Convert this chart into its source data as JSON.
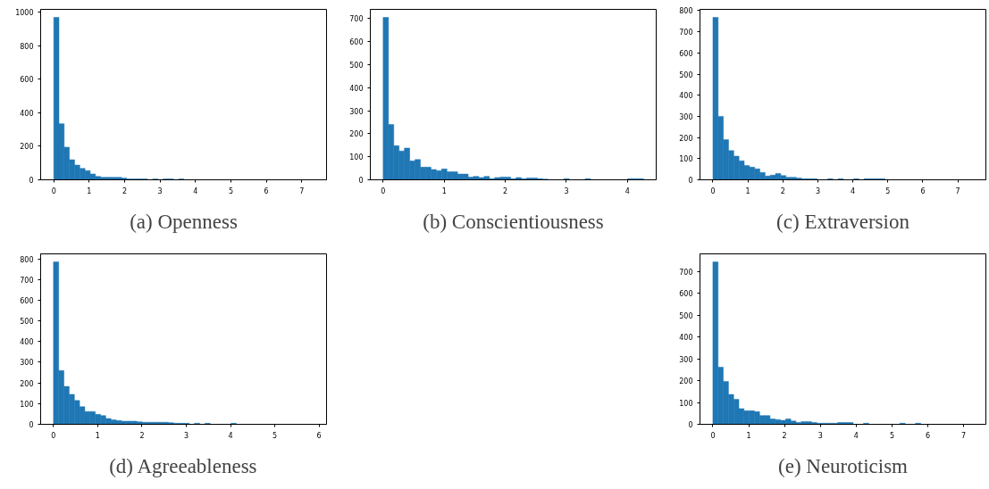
{
  "chart_data": [
    {
      "type": "histogram",
      "title": "(a) Openness",
      "color": "#1f77b4",
      "grid": false,
      "xlim": [
        -0.37,
        7.7
      ],
      "xticks": [
        0,
        1,
        2,
        3,
        4,
        5,
        6,
        7
      ],
      "ylim": [
        0,
        1018
      ],
      "yticks": [
        0,
        200,
        400,
        600,
        800,
        1000
      ],
      "bins": [
        0,
        0.147,
        0.294,
        0.441,
        0.588,
        0.735,
        0.882,
        1.029,
        1.176,
        1.323,
        1.47,
        1.617,
        1.764,
        1.911,
        2.058,
        2.205,
        2.352,
        2.499,
        2.646,
        2.793,
        2.94,
        3.087,
        3.234,
        3.381,
        3.528,
        3.675
      ],
      "values": [
        970,
        335,
        195,
        120,
        88,
        68,
        55,
        35,
        20,
        15,
        15,
        15,
        15,
        10,
        5,
        5,
        5,
        5,
        0,
        5,
        0,
        5,
        5,
        0,
        5
      ]
    },
    {
      "type": "histogram",
      "title": "(b) Conscientiousness",
      "color": "#1f77b4",
      "grid": false,
      "xlim": [
        -0.21,
        4.47
      ],
      "xticks": [
        0,
        1,
        2,
        3,
        4
      ],
      "ylim": [
        0,
        740
      ],
      "yticks": [
        0,
        100,
        200,
        300,
        400,
        500,
        600,
        700
      ],
      "bins": [
        0,
        0.087,
        0.174,
        0.261,
        0.348,
        0.435,
        0.522,
        0.609,
        0.696,
        0.783,
        0.87,
        0.957,
        1.044,
        1.131,
        1.218,
        1.305,
        1.392,
        1.479,
        1.566,
        1.653,
        1.74,
        1.827,
        1.914,
        2.001,
        2.088,
        2.175,
        2.262,
        2.349,
        2.436,
        2.523,
        2.61,
        2.697,
        2.784,
        2.871,
        2.958,
        3.045,
        3.132,
        3.219,
        3.306,
        3.393,
        3.48,
        3.567,
        3.654,
        3.741,
        3.828,
        3.915,
        4.002,
        4.089,
        4.176,
        4.263
      ],
      "values": [
        705,
        240,
        148,
        125,
        138,
        82,
        88,
        55,
        55,
        45,
        40,
        47,
        35,
        35,
        25,
        25,
        12,
        15,
        10,
        15,
        5,
        10,
        12,
        12,
        5,
        10,
        5,
        8,
        8,
        5,
        3,
        0,
        0,
        0,
        5,
        0,
        0,
        0,
        5,
        0,
        0,
        0,
        0,
        0,
        0,
        0,
        5,
        5,
        5
      ]
    },
    {
      "type": "histogram",
      "title": "(c) Extraversion",
      "color": "#1f77b4",
      "grid": false,
      "xlim": [
        -0.37,
        7.8
      ],
      "xticks": [
        0,
        1,
        2,
        3,
        4,
        5,
        6,
        7
      ],
      "ylim": [
        0,
        806
      ],
      "yticks": [
        0,
        100,
        200,
        300,
        400,
        500,
        600,
        700,
        800
      ],
      "bins": [
        0,
        0.149,
        0.298,
        0.447,
        0.596,
        0.745,
        0.894,
        1.043,
        1.192,
        1.341,
        1.49,
        1.639,
        1.788,
        1.937,
        2.086,
        2.235,
        2.384,
        2.533,
        2.682,
        2.831,
        2.98,
        3.129,
        3.278,
        3.427,
        3.576,
        3.725,
        3.874,
        4.023,
        4.172,
        4.321,
        4.47,
        4.619,
        4.768,
        4.917
      ],
      "values": [
        768,
        300,
        190,
        138,
        112,
        90,
        68,
        60,
        52,
        35,
        18,
        22,
        30,
        20,
        12,
        12,
        8,
        5,
        5,
        5,
        0,
        0,
        5,
        0,
        5,
        0,
        0,
        5,
        0,
        5,
        5,
        5,
        5
      ]
    },
    {
      "type": "histogram",
      "title": "(d) Agreeableness",
      "color": "#1f77b4",
      "grid": false,
      "xlim": [
        -0.29,
        6.17
      ],
      "xticks": [
        0,
        1,
        2,
        3,
        4,
        5,
        6
      ],
      "ylim": [
        0,
        824
      ],
      "yticks": [
        0,
        100,
        200,
        300,
        400,
        500,
        600,
        700,
        800
      ],
      "bins": [
        0,
        0.118,
        0.236,
        0.354,
        0.472,
        0.59,
        0.708,
        0.826,
        0.944,
        1.062,
        1.18,
        1.298,
        1.416,
        1.534,
        1.652,
        1.77,
        1.888,
        2.006,
        2.124,
        2.242,
        2.36,
        2.478,
        2.596,
        2.714,
        2.832,
        2.95,
        3.068,
        3.186,
        3.304,
        3.422,
        3.54,
        3.658,
        3.776,
        3.894,
        4.012,
        4.13
      ],
      "values": [
        785,
        260,
        183,
        145,
        115,
        85,
        62,
        62,
        48,
        42,
        28,
        22,
        18,
        15,
        15,
        15,
        12,
        10,
        10,
        10,
        10,
        10,
        8,
        5,
        5,
        5,
        0,
        5,
        0,
        5,
        0,
        0,
        0,
        0,
        5
      ]
    },
    {
      "type": "histogram",
      "title": "(e) Neuroticism",
      "color": "#1f77b4",
      "grid": false,
      "xlim": [
        -0.36,
        7.62
      ],
      "xticks": [
        0,
        1,
        2,
        3,
        4,
        5,
        6,
        7
      ],
      "ylim": [
        0,
        782
      ],
      "yticks": [
        0,
        100,
        200,
        300,
        400,
        500,
        600,
        700
      ],
      "bins": [
        0,
        0.145,
        0.29,
        0.435,
        0.58,
        0.725,
        0.87,
        1.015,
        1.16,
        1.305,
        1.45,
        1.595,
        1.74,
        1.885,
        2.03,
        2.175,
        2.32,
        2.465,
        2.61,
        2.755,
        2.9,
        3.045,
        3.19,
        3.335,
        3.48,
        3.625,
        3.77,
        3.915,
        4.06,
        4.205,
        4.35,
        4.495,
        4.64,
        4.785,
        4.93,
        5.075,
        5.22,
        5.365,
        5.51,
        5.655,
        5.8
      ],
      "values": [
        745,
        262,
        197,
        137,
        115,
        72,
        62,
        62,
        58,
        40,
        40,
        25,
        22,
        18,
        25,
        15,
        8,
        12,
        12,
        8,
        5,
        5,
        5,
        5,
        8,
        8,
        8,
        0,
        0,
        5,
        0,
        0,
        0,
        0,
        0,
        0,
        5,
        0,
        0,
        5
      ]
    }
  ]
}
